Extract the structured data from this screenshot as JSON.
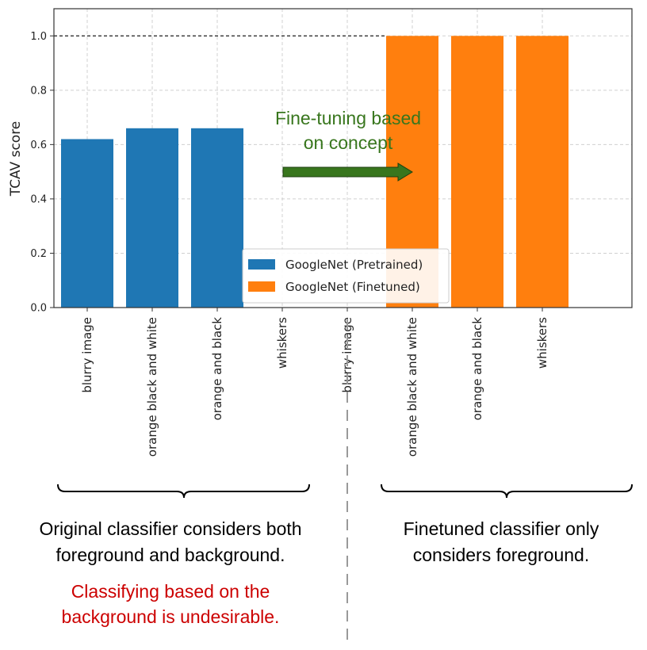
{
  "chart_data": {
    "type": "bar",
    "ylabel": "TCAV score",
    "ylim": [
      0,
      1.1
    ],
    "yticks": [
      "0.0",
      "0.2",
      "0.4",
      "0.6",
      "0.8",
      "1.0"
    ],
    "grid": true,
    "legend_position": "bottom-center",
    "reference_line": 1.0,
    "categories": [
      "blurry image",
      "orange black and white",
      "orange and black",
      "whiskers",
      "blurry image",
      "orange black and white",
      "orange and black",
      "whiskers"
    ],
    "series": [
      {
        "name": "GoogleNet (Pretrained)",
        "color": "#1f77b4",
        "values": [
          0.62,
          0.66,
          0.66,
          0.0,
          null,
          null,
          null,
          null
        ]
      },
      {
        "name": "GoogleNet (Finetuned)",
        "color": "#ff7f0e",
        "values": [
          null,
          null,
          null,
          null,
          0.0,
          1.0,
          1.0,
          1.0
        ]
      }
    ]
  },
  "annotations": {
    "arrow_text": [
      "Fine-tuning based",
      "on concept"
    ],
    "arrow_color": "#38761d",
    "left_caption": [
      "Original classifier considers both",
      "foreground and background."
    ],
    "left_warning": [
      "Classifying based on the",
      "background is undesirable."
    ],
    "warning_color": "#cc0000",
    "right_caption": [
      "Finetuned classifier only",
      "considers foreground."
    ]
  }
}
